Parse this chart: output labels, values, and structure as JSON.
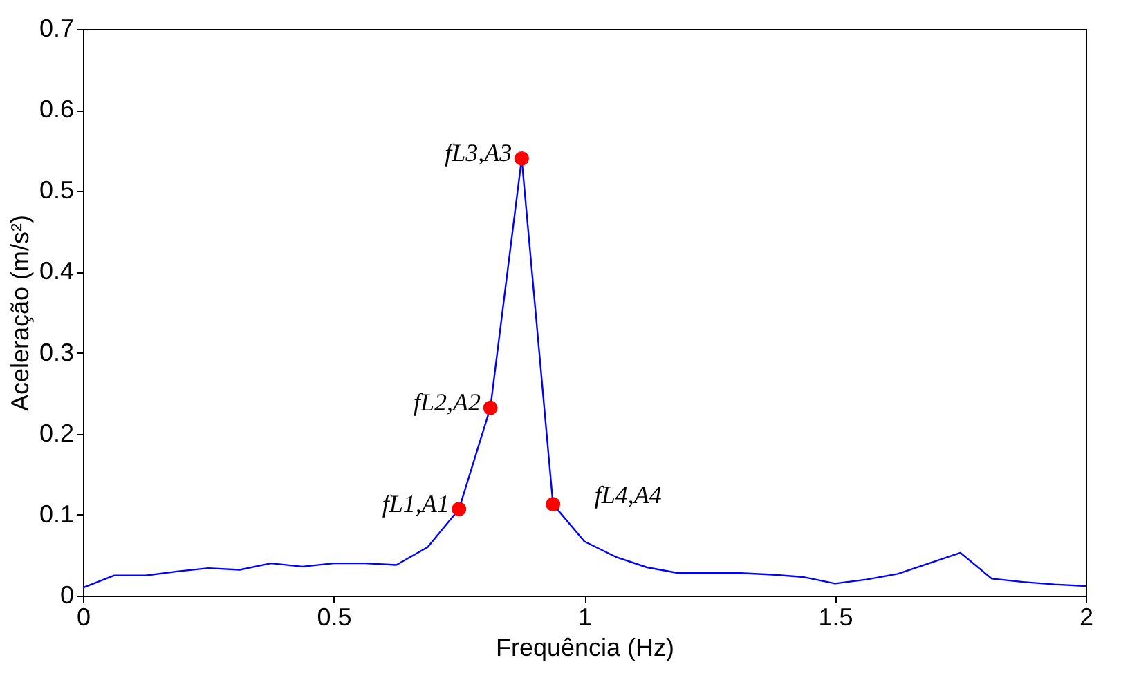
{
  "chart_data": {
    "type": "line",
    "xlabel": "Frequência (Hz)",
    "ylabel": "Aceleração (m/s²)",
    "xlim": [
      0,
      2
    ],
    "xticks": [
      0,
      0.5,
      1,
      1.5,
      2
    ],
    "ylim": [
      0,
      0.7
    ],
    "yticks": [
      0,
      0.1,
      0.2,
      0.3,
      0.4,
      0.5,
      0.6,
      0.7
    ],
    "grid": false,
    "series": [
      {
        "color": "#0000ff",
        "marker": "none",
        "line_style": "solid",
        "x": [
          0,
          0.0625,
          0.125,
          0.1875,
          0.25,
          0.3125,
          0.375,
          0.4375,
          0.5,
          0.5625,
          0.625,
          0.6875,
          0.75,
          0.8125,
          0.875,
          0.9375,
          1.0,
          1.0625,
          1.125,
          1.1875,
          1.25,
          1.3125,
          1.375,
          1.4375,
          1.5,
          1.5625,
          1.625,
          1.6875,
          1.75,
          1.8125,
          1.875,
          1.9375,
          2.0
        ],
        "values": [
          0.01,
          0.025,
          0.025,
          0.03,
          0.034,
          0.032,
          0.04,
          0.036,
          0.04,
          0.04,
          0.038,
          0.06,
          0.107,
          0.232,
          0.54,
          0.113,
          0.067,
          0.048,
          0.035,
          0.028,
          0.028,
          0.028,
          0.026,
          0.023,
          0.015,
          0.02,
          0.027,
          0.04,
          0.053,
          0.021,
          0.017,
          0.014,
          0.012
        ]
      },
      {
        "type": "scatter",
        "color": "#ff0000",
        "marker": "circle",
        "x": [
          0.75,
          0.8125,
          0.875,
          0.9375
        ],
        "values": [
          0.107,
          0.232,
          0.54,
          0.113
        ]
      }
    ],
    "annotations": [
      {
        "text": "fL1,A1",
        "x": 0.75,
        "y": 0.107
      },
      {
        "text": "fL2,A2",
        "x": 0.8125,
        "y": 0.232
      },
      {
        "text": "fL3,A3",
        "x": 0.875,
        "y": 0.54
      },
      {
        "text": "fL4,A4",
        "x": 0.9375,
        "y": 0.113
      }
    ]
  }
}
